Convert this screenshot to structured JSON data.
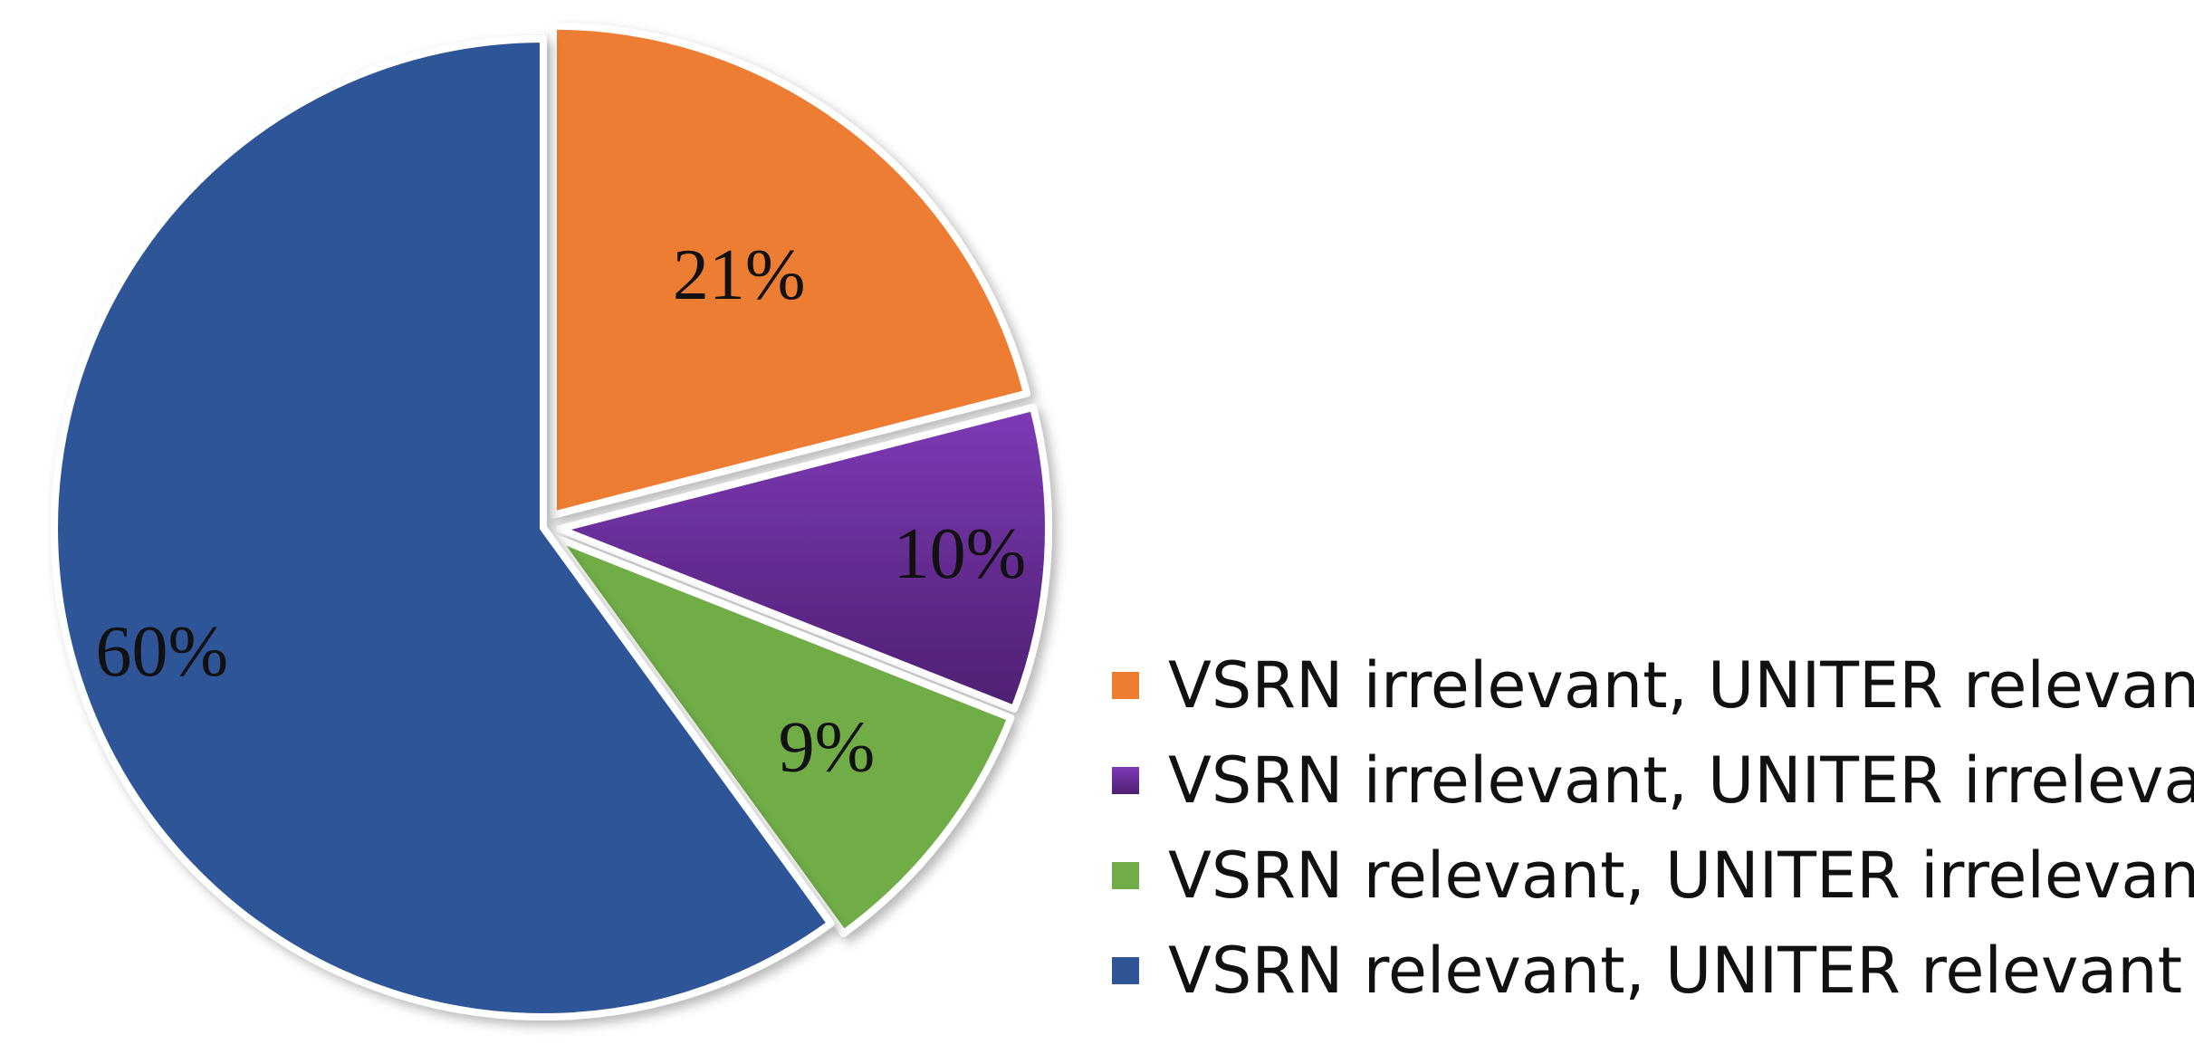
{
  "chart_data": {
    "type": "pie",
    "title": "",
    "slices": [
      {
        "name": "VSRN irrelevant, UNITER relevant",
        "value": 21,
        "label": "21%",
        "color": "#ED7D31",
        "exploded": true
      },
      {
        "name": "VSRN irrelevant, UNITER irrelevant",
        "value": 10,
        "label": "10%",
        "color": "#7030A0",
        "exploded": true
      },
      {
        "name": "VSRN relevant, UNITER irrelevant",
        "value": 9,
        "label": "9%",
        "color": "#70AD47",
        "exploded": true
      },
      {
        "name": "VSRN relevant, UNITER relevant",
        "value": 60,
        "label": "60%",
        "color": "#2F5597",
        "exploded": false
      }
    ],
    "legend_position": "bottom-right",
    "start_angle": "12 o'clock",
    "direction": "clockwise"
  }
}
